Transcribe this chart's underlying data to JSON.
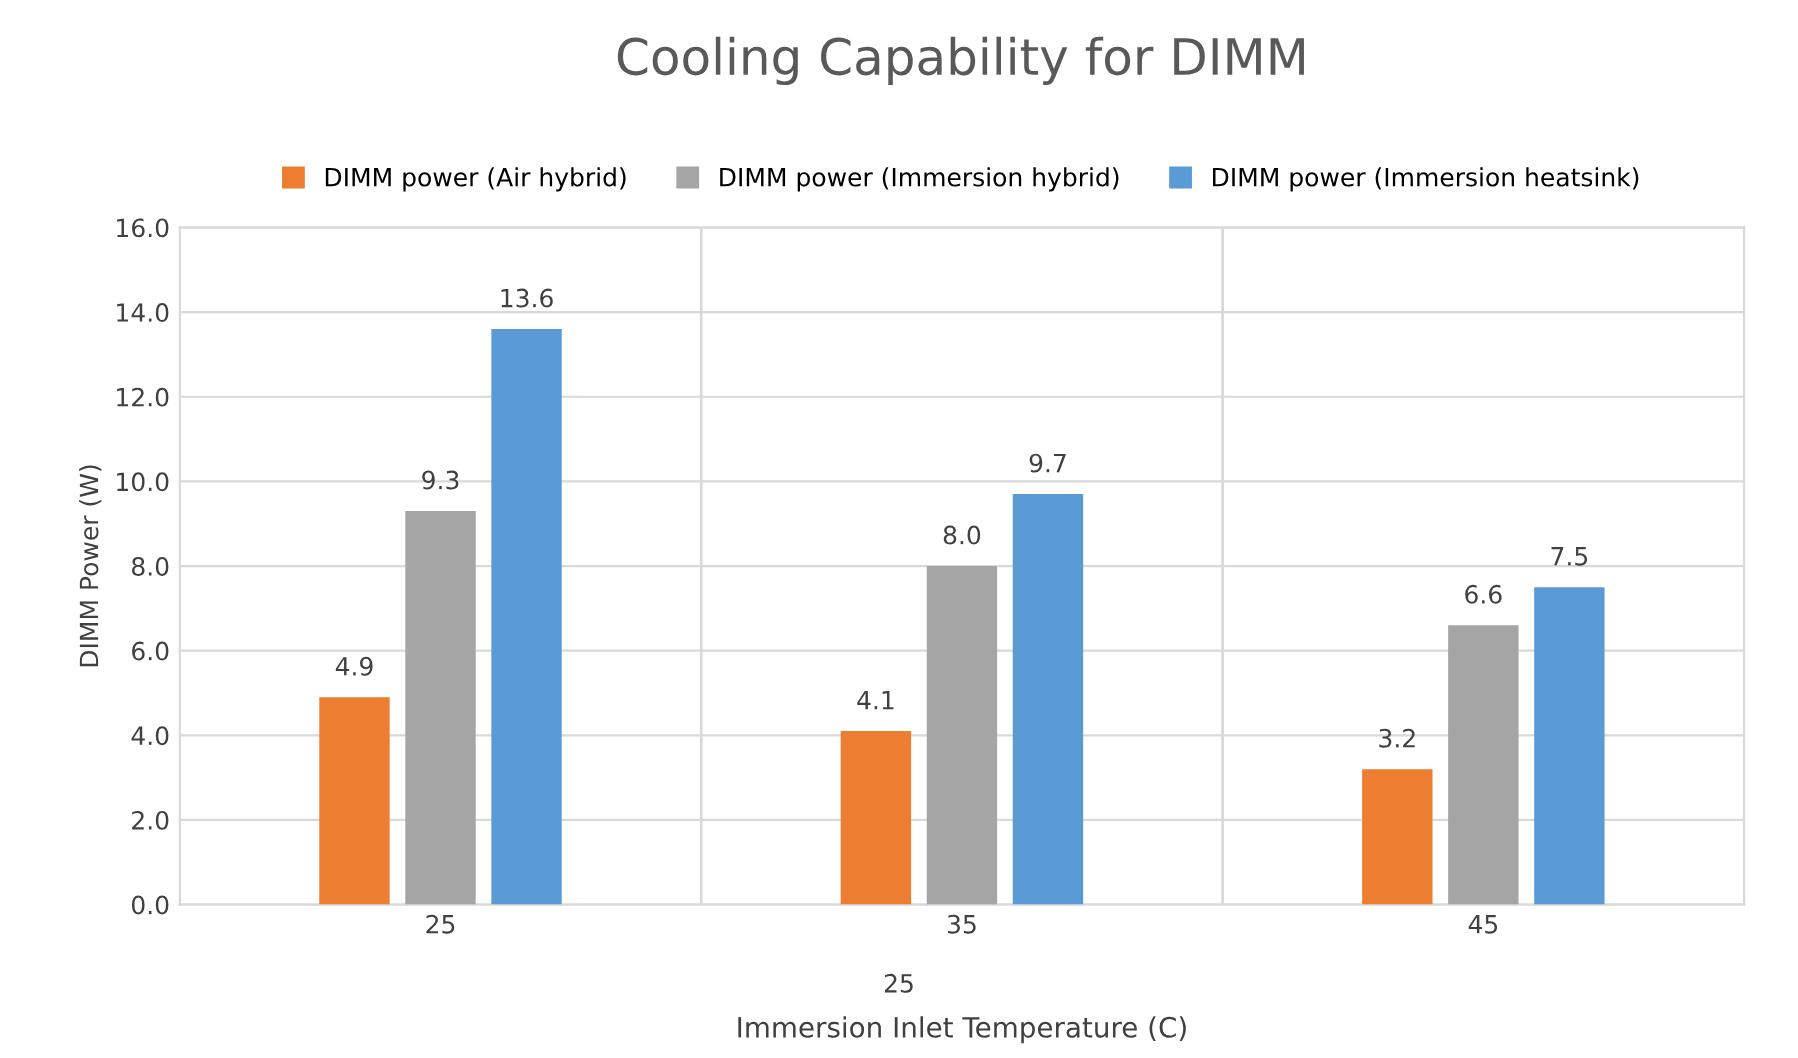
{
  "chart_data": {
    "type": "bar",
    "title": "Cooling Capability for DIMM",
    "xlabel": "Immersion Inlet Temperature (C)",
    "ylabel": "DIMM Power (W)",
    "categories": [
      "25",
      "35",
      "45"
    ],
    "series": [
      {
        "name": "DIMM power (Air hybrid)",
        "color": "#ed7d31",
        "values": [
          4.9,
          4.1,
          3.2
        ],
        "value_labels": [
          "4.9",
          "4.1",
          "3.2"
        ]
      },
      {
        "name": "DIMM power (Immersion hybrid)",
        "color": "#a5a5a5",
        "values": [
          9.3,
          8.0,
          6.6
        ],
        "value_labels": [
          "9.3",
          "8.0",
          "6.6"
        ]
      },
      {
        "name": "DIMM power (Immersion heatsink)",
        "color": "#5b9bd5",
        "values": [
          13.6,
          9.7,
          7.5
        ],
        "value_labels": [
          "13.6",
          "9.7",
          "7.5"
        ]
      }
    ],
    "ylim": [
      0,
      16
    ],
    "yticks": [
      {
        "value": 0,
        "label": "0.0"
      },
      {
        "value": 2,
        "label": "2.0"
      },
      {
        "value": 4,
        "label": "4.0"
      },
      {
        "value": 6,
        "label": "6.0"
      },
      {
        "value": 8,
        "label": "8.0"
      },
      {
        "value": 10,
        "label": "10.0"
      },
      {
        "value": 12,
        "label": "12.0"
      },
      {
        "value": 14,
        "label": "14.0"
      },
      {
        "value": 16,
        "label": "16.0"
      }
    ],
    "grid": true,
    "legend": "top",
    "annotations": [
      "25"
    ]
  }
}
